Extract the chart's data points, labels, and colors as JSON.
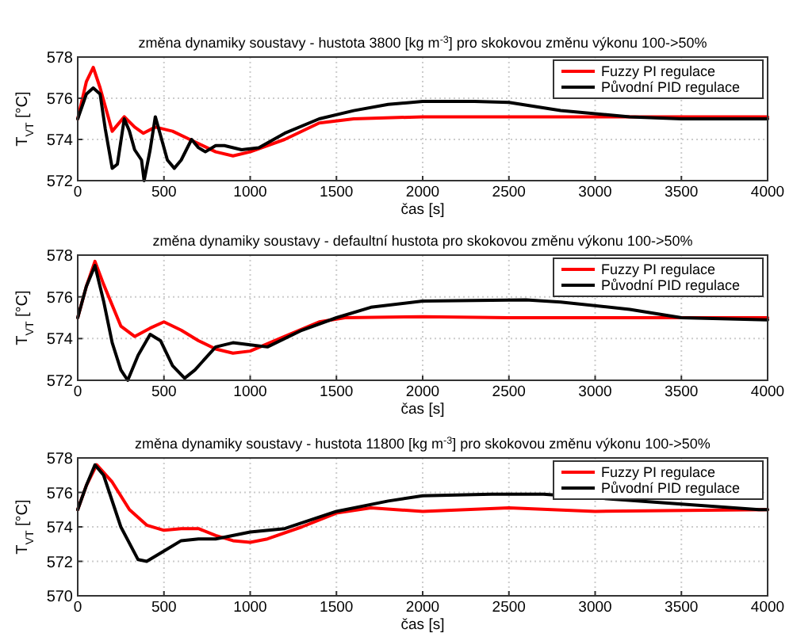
{
  "chart_data": [
    {
      "type": "line",
      "title": "změna dynamiky soustavy - hustota 3800 [kg m$^{-3}$] pro skokovou změnu výkonu 100->50%",
      "xlabel": "čas [s]",
      "ylabel": "T$_{VT}$ [°C]",
      "xlim": [
        0,
        4000
      ],
      "ylim": [
        572,
        578
      ],
      "xticks": [
        0,
        500,
        1000,
        1500,
        2000,
        2500,
        3000,
        3500,
        4000
      ],
      "yticks": [
        572,
        574,
        576,
        578
      ],
      "grid": true,
      "legend": "top right",
      "line_style": "solid",
      "series": [
        {
          "name": "Fuzzy PI regulace",
          "color": "#ff0000",
          "x": [
            0,
            50,
            90,
            130,
            200,
            270,
            330,
            380,
            450,
            550,
            650,
            800,
            900,
            1000,
            1200,
            1400,
            1600,
            2000,
            3000,
            4000
          ],
          "values": [
            575,
            576.8,
            577.5,
            576.5,
            574.4,
            575.1,
            574.6,
            574.3,
            574.6,
            574.4,
            574,
            573.4,
            573.2,
            573.4,
            574,
            574.8,
            575,
            575.1,
            575.1,
            575.1
          ]
        },
        {
          "name": "Původní PID regulace",
          "color": "#000000",
          "x": [
            0,
            50,
            90,
            130,
            160,
            200,
            230,
            270,
            300,
            330,
            370,
            385,
            420,
            450,
            480,
            520,
            560,
            600,
            660,
            700,
            740,
            800,
            850,
            950,
            1050,
            1200,
            1400,
            1600,
            1800,
            2000,
            2300,
            2500,
            2800,
            3200,
            3500,
            4000
          ],
          "values": [
            575,
            576.2,
            576.5,
            576.2,
            574.5,
            572.6,
            572.8,
            575,
            574.4,
            573.5,
            573,
            572,
            573.5,
            575.1,
            574.2,
            573,
            572.6,
            573,
            574,
            573.6,
            573.4,
            573.7,
            573.7,
            573.5,
            573.6,
            574.3,
            575,
            575.4,
            575.7,
            575.85,
            575.85,
            575.8,
            575.4,
            575.1,
            575,
            575
          ]
        }
      ]
    },
    {
      "type": "line",
      "title": "změna dynamiky soustavy - defaultní hustota pro skokovou změnu výkonu 100->50%",
      "xlabel": "čas [s]",
      "ylabel": "T$_{VT}$ [°C]",
      "xlim": [
        0,
        4000
      ],
      "ylim": [
        572,
        578
      ],
      "xticks": [
        0,
        500,
        1000,
        1500,
        2000,
        2500,
        3000,
        3500,
        4000
      ],
      "yticks": [
        572,
        574,
        576,
        578
      ],
      "grid": true,
      "legend": "top right",
      "line_style": "solid",
      "series": [
        {
          "name": "Fuzzy PI regulace",
          "color": "#ff0000",
          "x": [
            0,
            50,
            100,
            150,
            250,
            330,
            420,
            500,
            600,
            700,
            800,
            900,
            1000,
            1200,
            1400,
            1550,
            2000,
            2500,
            4000
          ],
          "values": [
            575,
            576.5,
            577.7,
            576.6,
            574.6,
            574.1,
            574.5,
            574.8,
            574.4,
            573.9,
            573.5,
            573.3,
            573.4,
            574.1,
            574.8,
            575,
            575.05,
            575,
            575
          ]
        },
        {
          "name": "Původní PID regulace",
          "color": "#000000",
          "x": [
            0,
            50,
            100,
            150,
            200,
            250,
            290,
            350,
            420,
            480,
            550,
            620,
            680,
            800,
            900,
            1000,
            1100,
            1300,
            1500,
            1700,
            2000,
            2600,
            2800,
            3200,
            3500,
            4000
          ],
          "values": [
            575,
            576.5,
            577.5,
            575.8,
            573.8,
            572.5,
            572,
            573.2,
            574.2,
            573.9,
            572.7,
            572.1,
            572.5,
            573.6,
            573.8,
            573.7,
            573.6,
            574.4,
            575,
            575.5,
            575.8,
            575.85,
            575.75,
            575.4,
            575,
            574.9
          ]
        }
      ]
    },
    {
      "type": "line",
      "title": "změna dynamiky soustavy - hustota 11800 [kg m$^{-3}$] pro skokovou změnu výkonu 100->50%",
      "xlabel": "čas [s]",
      "ylabel": "T$_{VT}$ [°C]",
      "xlim": [
        0,
        4000
      ],
      "ylim": [
        570,
        578
      ],
      "xticks": [
        0,
        500,
        1000,
        1500,
        2000,
        2500,
        3000,
        3500,
        4000
      ],
      "yticks": [
        570,
        572,
        574,
        576,
        578
      ],
      "grid": true,
      "legend": "top right",
      "line_style": "solid",
      "series": [
        {
          "name": "Fuzzy PI regulace",
          "color": "#ff0000",
          "x": [
            0,
            50,
            110,
            200,
            300,
            400,
            500,
            600,
            700,
            800,
            900,
            1000,
            1100,
            1300,
            1500,
            1700,
            2000,
            2500,
            3000,
            4000
          ],
          "values": [
            575,
            576.4,
            577.6,
            576.6,
            575,
            574.1,
            573.8,
            573.9,
            573.9,
            573.5,
            573.2,
            573.1,
            573.3,
            574,
            574.8,
            575.1,
            574.9,
            575.1,
            574.9,
            575
          ]
        },
        {
          "name": "Původní PID regulace",
          "color": "#000000",
          "x": [
            0,
            50,
            100,
            150,
            250,
            350,
            400,
            500,
            600,
            700,
            800,
            1000,
            1200,
            1500,
            1800,
            2000,
            2400,
            2700,
            3950,
            4000
          ],
          "values": [
            575,
            576.4,
            577.6,
            577,
            574,
            572.1,
            572,
            572.6,
            573.2,
            573.3,
            573.3,
            573.7,
            573.9,
            574.9,
            575.5,
            575.8,
            575.9,
            575.9,
            575,
            575
          ]
        }
      ]
    }
  ]
}
